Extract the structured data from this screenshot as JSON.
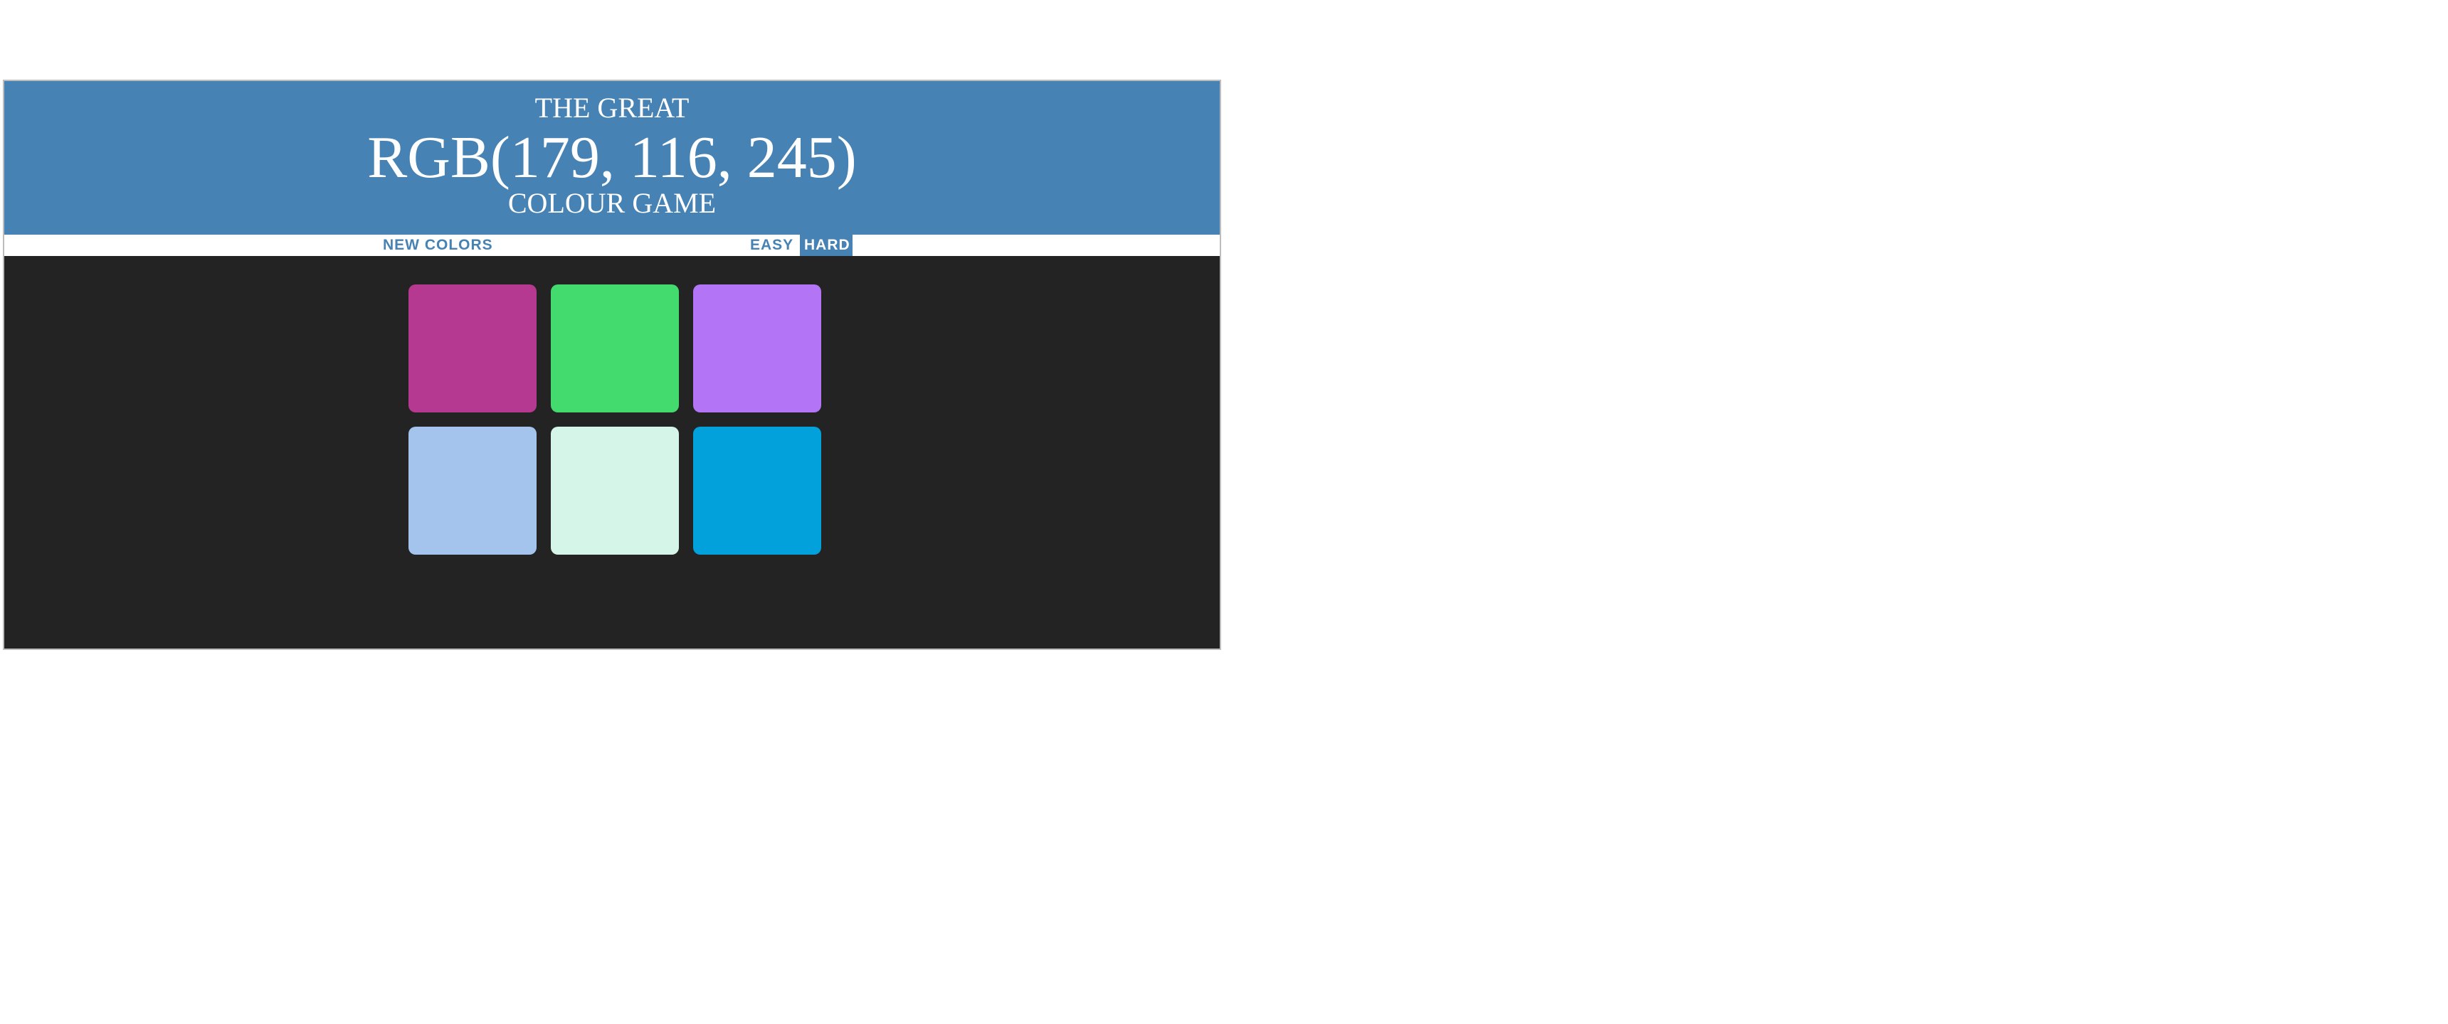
{
  "header": {
    "line_top": "THE GREAT",
    "target_rgb": "RGB(179, 116, 245)",
    "line_bottom": "COLOUR GAME",
    "background_color": "#4682b4"
  },
  "controls": {
    "new_colors_label": "NEW COLORS",
    "easy_label": "EASY",
    "hard_label": "HARD",
    "selected_mode": "HARD"
  },
  "board": {
    "background_color": "#232323",
    "squares": [
      {
        "color": "rgb(181, 57, 145)"
      },
      {
        "color": "rgb(67, 219, 109)"
      },
      {
        "color": "rgb(179, 116, 245)"
      },
      {
        "color": "rgb(164, 196, 238)"
      },
      {
        "color": "rgb(214, 245, 233)"
      },
      {
        "color": "rgb(2, 161, 219)"
      }
    ]
  }
}
